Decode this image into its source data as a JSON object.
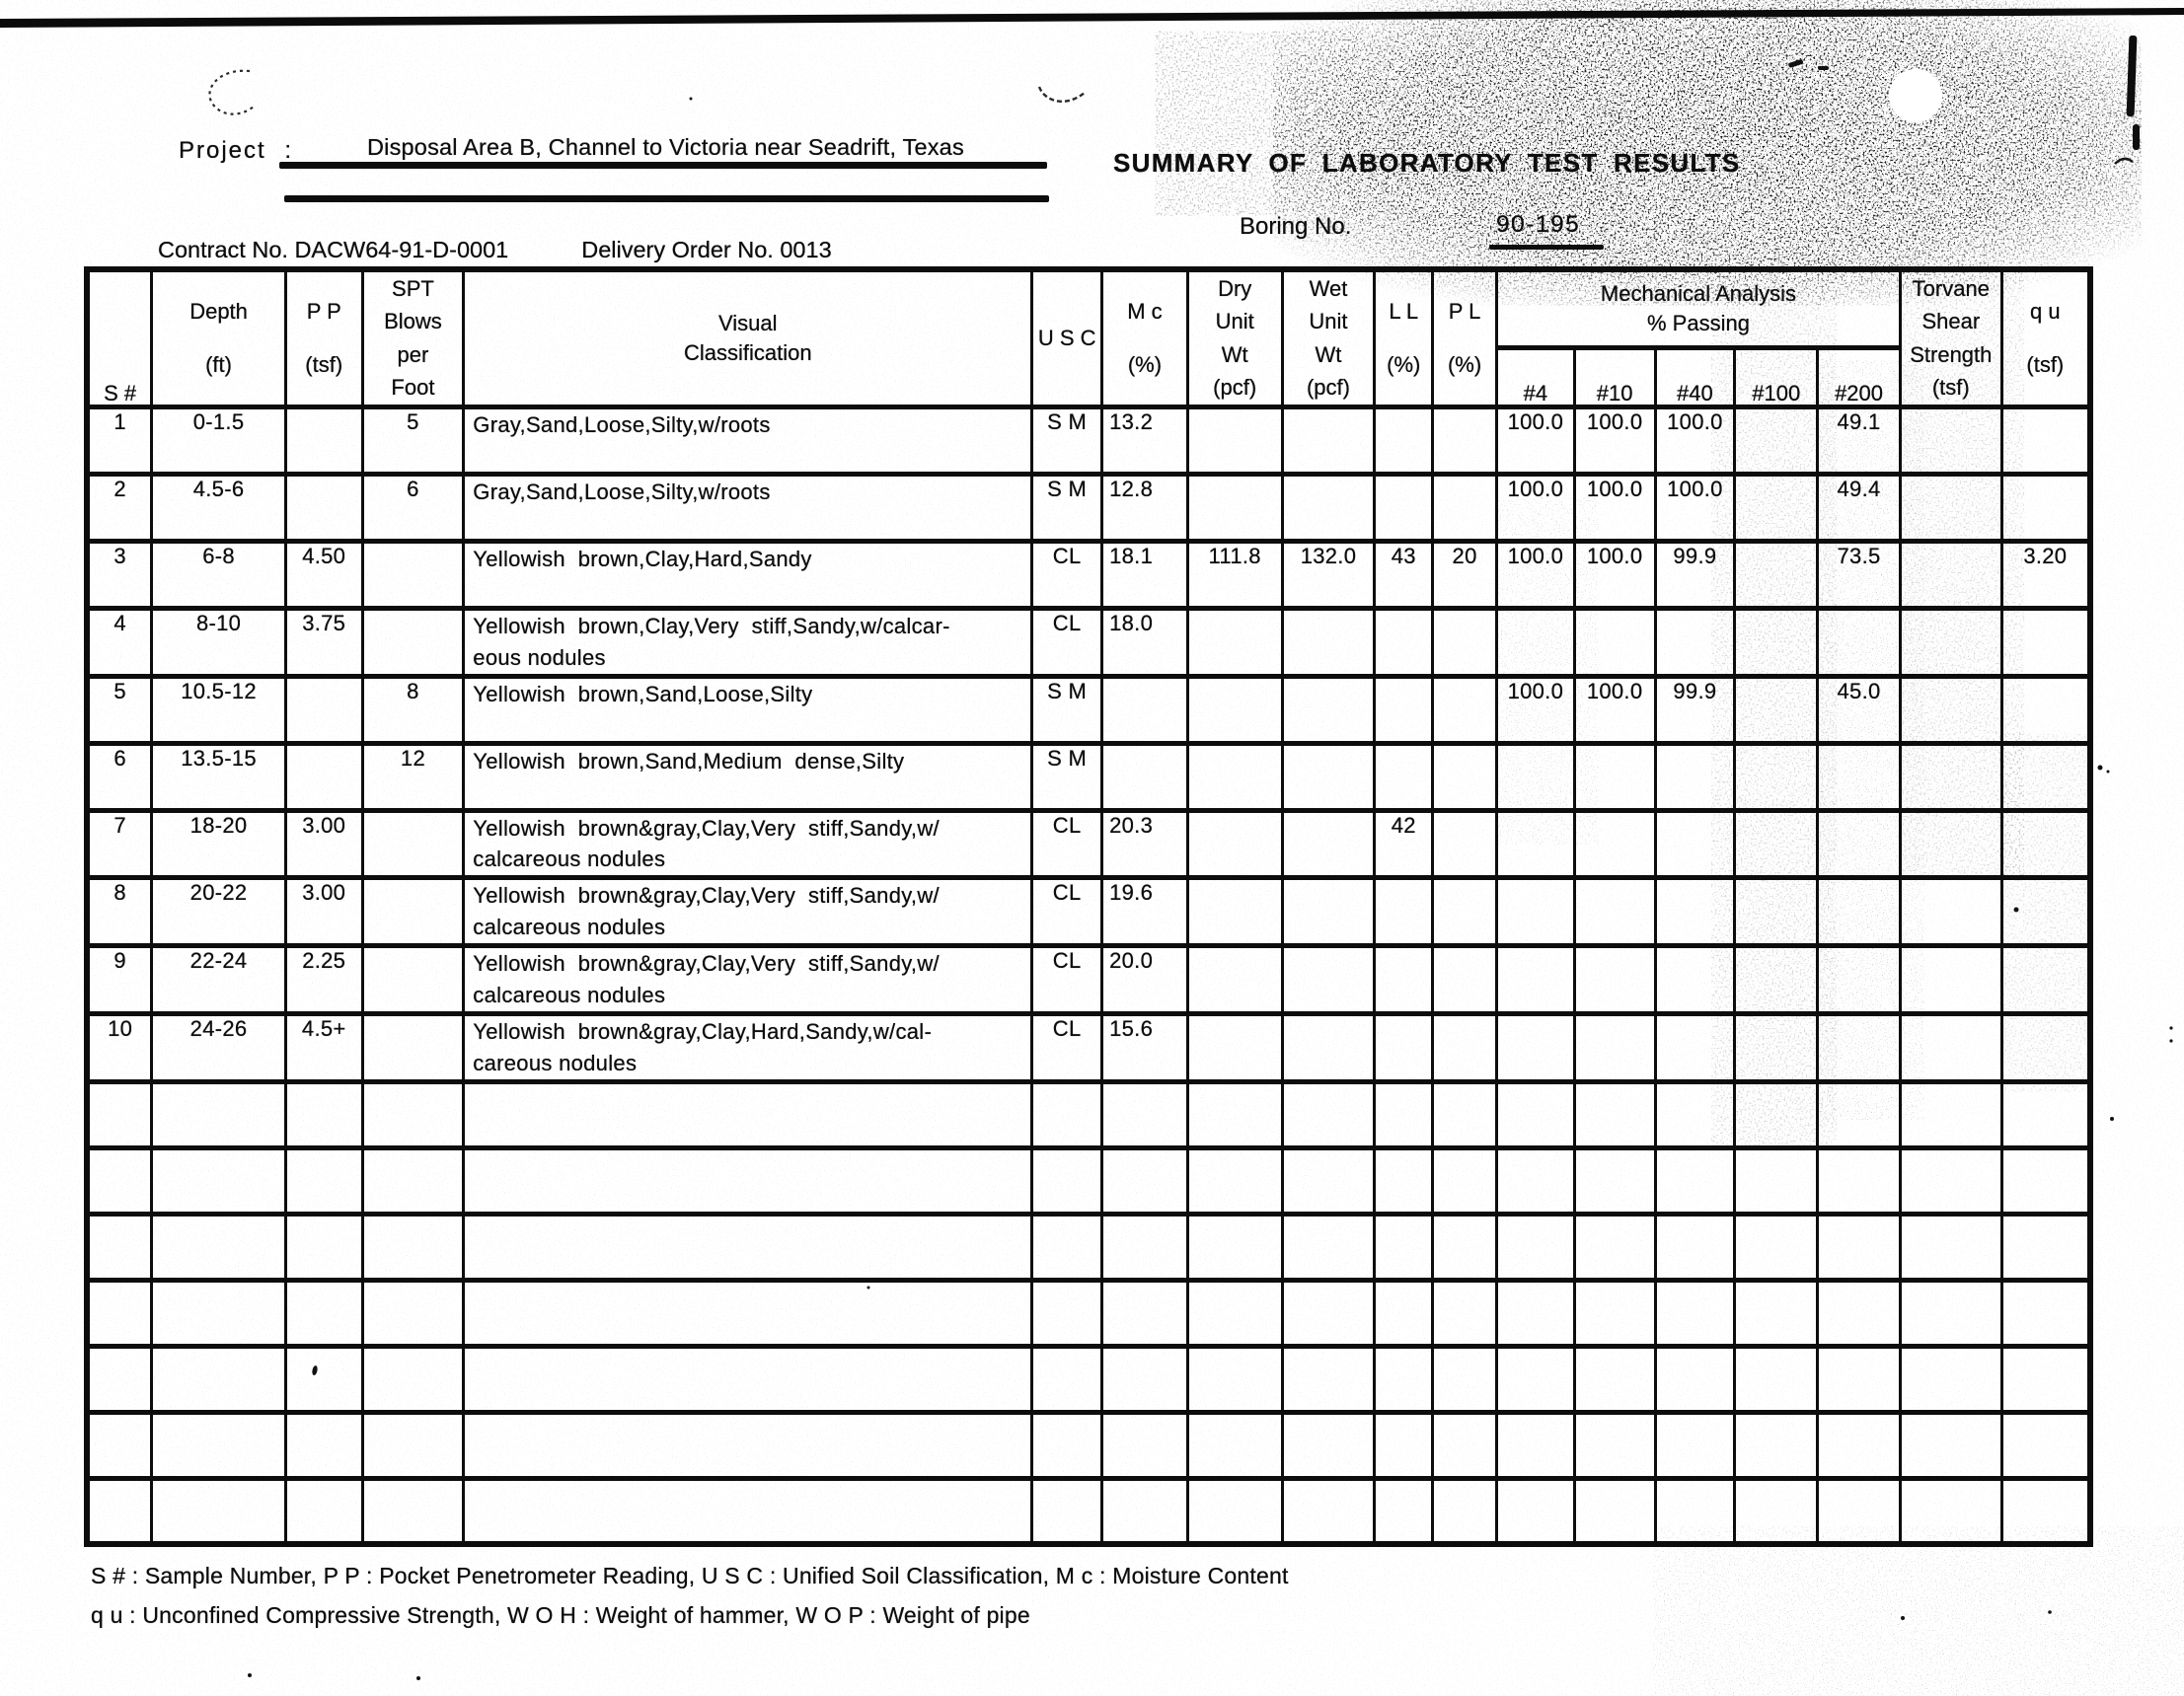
{
  "page": {
    "project_label": "Project :",
    "project_value": "Disposal Area B, Channel to Victoria near Seadrift, Texas",
    "title": "SUMMARY OF LABORATORY TEST RESULTS",
    "boring_label": "Boring No.",
    "boring_value": "90-195",
    "contract_no": "Contract No. DACW64-91-D-0001",
    "delivery_order": "Delivery Order No. 0013"
  },
  "table": {
    "headers": {
      "s_num": "S #",
      "depth": "Depth\n(ft)",
      "pp": "P P\n(tsf)",
      "spt": "SPT\nBlows\nper\nFoot",
      "visual": "Visual\nClassification",
      "usc": "U S C",
      "mc": "M c\n(%)",
      "dry": "Dry\nUnit\nWt\n(pcf)",
      "wet": "Wet\nUnit\nWt\n(pcf)",
      "ll": "L L\n(%)",
      "pl": "P L\n(%)",
      "mech": "Mechanical Analysis\n% Passing",
      "sieves": [
        "#4",
        "#10",
        "#40",
        "#100",
        "#200"
      ],
      "torvane": "Torvane\nShear\nStrength\n(tsf)",
      "qu": "q u\n(tsf)"
    },
    "col_names": [
      "cell-sample-number",
      "cell-depth",
      "cell-pp",
      "cell-spt-blows",
      "cell-visual-classification",
      "cell-usc",
      "cell-moisture-content",
      "cell-dry-unit-wt",
      "cell-wet-unit-wt",
      "cell-liquid-limit",
      "cell-plastic-limit",
      "cell-passing-no4",
      "cell-passing-no10",
      "cell-passing-no40",
      "cell-passing-no100",
      "cell-passing-no200",
      "cell-torvane-shear",
      "cell-qu"
    ],
    "rows": [
      [
        "1",
        "0-1.5",
        "",
        "5",
        "Gray,Sand,Loose,Silty,w/roots",
        "S M",
        "13.2",
        "",
        "",
        "",
        "",
        "100.0",
        "100.0",
        "100.0",
        "",
        "49.1",
        "",
        ""
      ],
      [
        "2",
        "4.5-6",
        "",
        "6",
        "Gray,Sand,Loose,Silty,w/roots",
        "S M",
        "12.8",
        "",
        "",
        "",
        "",
        "100.0",
        "100.0",
        "100.0",
        "",
        "49.4",
        "",
        ""
      ],
      [
        "3",
        "6-8",
        "4.50",
        "",
        "Yellowish  brown,Clay,Hard,Sandy",
        "CL",
        "18.1",
        "111.8",
        "132.0",
        "43",
        "20",
        "100.0",
        "100.0",
        "99.9",
        "",
        "73.5",
        "",
        "3.20"
      ],
      [
        "4",
        "8-10",
        "3.75",
        "",
        "Yellowish  brown,Clay,Very  stiff,Sandy,w/calcar-\neous nodules",
        "CL",
        "18.0",
        "",
        "",
        "",
        "",
        "",
        "",
        "",
        "",
        "",
        "",
        ""
      ],
      [
        "5",
        "10.5-12",
        "",
        "8",
        "Yellowish  brown,Sand,Loose,Silty",
        "S M",
        "",
        "",
        "",
        "",
        "",
        "100.0",
        "100.0",
        "99.9",
        "",
        "45.0",
        "",
        ""
      ],
      [
        "6",
        "13.5-15",
        "",
        "12",
        "Yellowish  brown,Sand,Medium  dense,Silty",
        "S M",
        "",
        "",
        "",
        "",
        "",
        "",
        "",
        "",
        "",
        "",
        "",
        ""
      ],
      [
        "7",
        "18-20",
        "3.00",
        "",
        "Yellowish  brown&gray,Clay,Very  stiff,Sandy,w/\ncalcareous nodules",
        "CL",
        "20.3",
        "",
        "",
        "42",
        "",
        "",
        "",
        "",
        "",
        "",
        "",
        ""
      ],
      [
        "8",
        "20-22",
        "3.00",
        "",
        "Yellowish  brown&gray,Clay,Very  stiff,Sandy,w/\ncalcareous nodules",
        "CL",
        "19.6",
        "",
        "",
        "",
        "",
        "",
        "",
        "",
        "",
        "",
        "",
        ""
      ],
      [
        "9",
        "22-24",
        "2.25",
        "",
        "Yellowish  brown&gray,Clay,Very  stiff,Sandy,w/\ncalcareous nodules",
        "CL",
        "20.0",
        "",
        "",
        "",
        "",
        "",
        "",
        "",
        "",
        "",
        "",
        ""
      ],
      [
        "10",
        "24-26",
        "4.5+",
        "",
        "Yellowish  brown&gray,Clay,Hard,Sandy,w/cal-\ncareous nodules",
        "CL",
        "15.6",
        "",
        "",
        "",
        "",
        "",
        "",
        "",
        "",
        "",
        "",
        ""
      ]
    ],
    "empty_row_count": 7
  },
  "footnotes": [
    "S # : Sample Number, P P : Pocket Penetrometer Reading, U S C : Unified Soil Classification, M c : Moisture Content",
    "q u : Unconfined Compressive Strength, W O H : Weight of hammer, W O P : Weight of pipe"
  ],
  "colors": {
    "ink": "#0d0d0d",
    "paper": "#ffffff"
  }
}
